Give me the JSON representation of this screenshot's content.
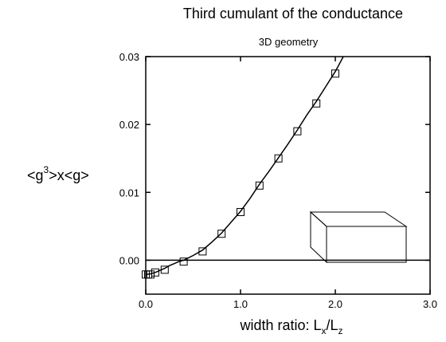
{
  "chart_data": {
    "type": "line",
    "title": "Third cumulant of the conductance",
    "subtitle": "3D geometry",
    "xlabel": {
      "prefix": "width ratio: L",
      "sub1": "x",
      "mid": "/L",
      "sub2": "z"
    },
    "ylabel": {
      "prefix": "<g",
      "sup": "3",
      "suffix": ">x<g>"
    },
    "xlim": [
      0.0,
      3.0
    ],
    "ylim": [
      -0.005,
      0.03
    ],
    "x_ticks": [
      {
        "value": 0.0,
        "label": "0.0"
      },
      {
        "value": 1.0,
        "label": "1.0"
      },
      {
        "value": 2.0,
        "label": "2.0"
      },
      {
        "value": 3.0,
        "label": "3.0"
      }
    ],
    "y_ticks": [
      {
        "value": 0.0,
        "label": "0.00"
      },
      {
        "value": 0.01,
        "label": "0.01"
      },
      {
        "value": 0.02,
        "label": "0.02"
      },
      {
        "value": 0.03,
        "label": "0.03"
      }
    ],
    "reference_line_y": 0.0,
    "series": [
      {
        "style": "line",
        "color": "#000000",
        "x": [
          0.0,
          0.05,
          0.1,
          0.15,
          0.2,
          0.25,
          0.3,
          0.35,
          0.4,
          0.5,
          0.6,
          0.7,
          0.8,
          0.9,
          1.0,
          1.1,
          1.2,
          1.3,
          1.4,
          1.5,
          1.6,
          1.7,
          1.8,
          1.9,
          2.0,
          2.1
        ],
        "y": [
          -0.0021,
          -0.002,
          -0.0018,
          -0.0015,
          -0.0012,
          -0.0008,
          -0.0005,
          -0.0002,
          0.0,
          0.0007,
          0.0015,
          0.0027,
          0.004,
          0.0056,
          0.0072,
          0.0091,
          0.0112,
          0.0131,
          0.0151,
          0.0171,
          0.0192,
          0.0214,
          0.0234,
          0.0256,
          0.0278,
          0.0304
        ]
      },
      {
        "style": "markers",
        "marker": "open-square",
        "color": "#000000",
        "x": [
          0.0,
          0.025,
          0.05,
          0.1,
          0.2,
          0.4,
          0.6,
          0.8,
          1.0,
          1.2,
          1.4,
          1.6,
          1.8,
          2.0
        ],
        "y": [
          -0.0021,
          -0.0021,
          -0.0021,
          -0.0018,
          -0.0014,
          -0.0002,
          0.0013,
          0.0039,
          0.0071,
          0.011,
          0.015,
          0.019,
          0.0231,
          0.0275
        ]
      }
    ],
    "grid": false,
    "legend": "none",
    "inset": "open box outline (3D slab geometry) at lower right"
  }
}
